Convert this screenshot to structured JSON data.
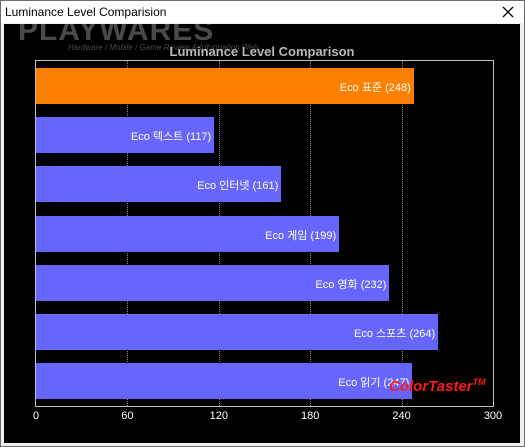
{
  "window": {
    "title": "Luminance Level Comparision"
  },
  "watermark": {
    "logo": "PLAYWARES",
    "subtitle": "Hardware / Mobile / Game Review & Information Web"
  },
  "colors": {
    "highlight_bar": "#ff8000",
    "bar": "#6666ff",
    "background": "#000000"
  },
  "brand": {
    "name": "ColorTaster",
    "mark": "TM"
  },
  "chart_data": {
    "type": "bar",
    "orientation": "horizontal",
    "title": "Luminance Level Comparison",
    "categories": [
      "Eco 표준",
      "Eco 텍스트",
      "Eco 인터넷",
      "Eco 게임",
      "Eco 영화",
      "Eco 스포츠",
      "Eco 읽기"
    ],
    "values": [
      248,
      117,
      161,
      199,
      232,
      264,
      247
    ],
    "labels": [
      "Eco 표준 (248)",
      "Eco 텍스트 (117)",
      "Eco 인터넷 (161)",
      "Eco 게임 (199)",
      "Eco 영화 (232)",
      "Eco 스포츠 (264)",
      "Eco 읽기 (247)"
    ],
    "highlight_index": 0,
    "xlim": [
      0,
      300
    ],
    "xticks": [
      "0",
      "60",
      "120",
      "180",
      "240",
      "300"
    ],
    "xlabel": "",
    "ylabel": "",
    "grid": true
  }
}
